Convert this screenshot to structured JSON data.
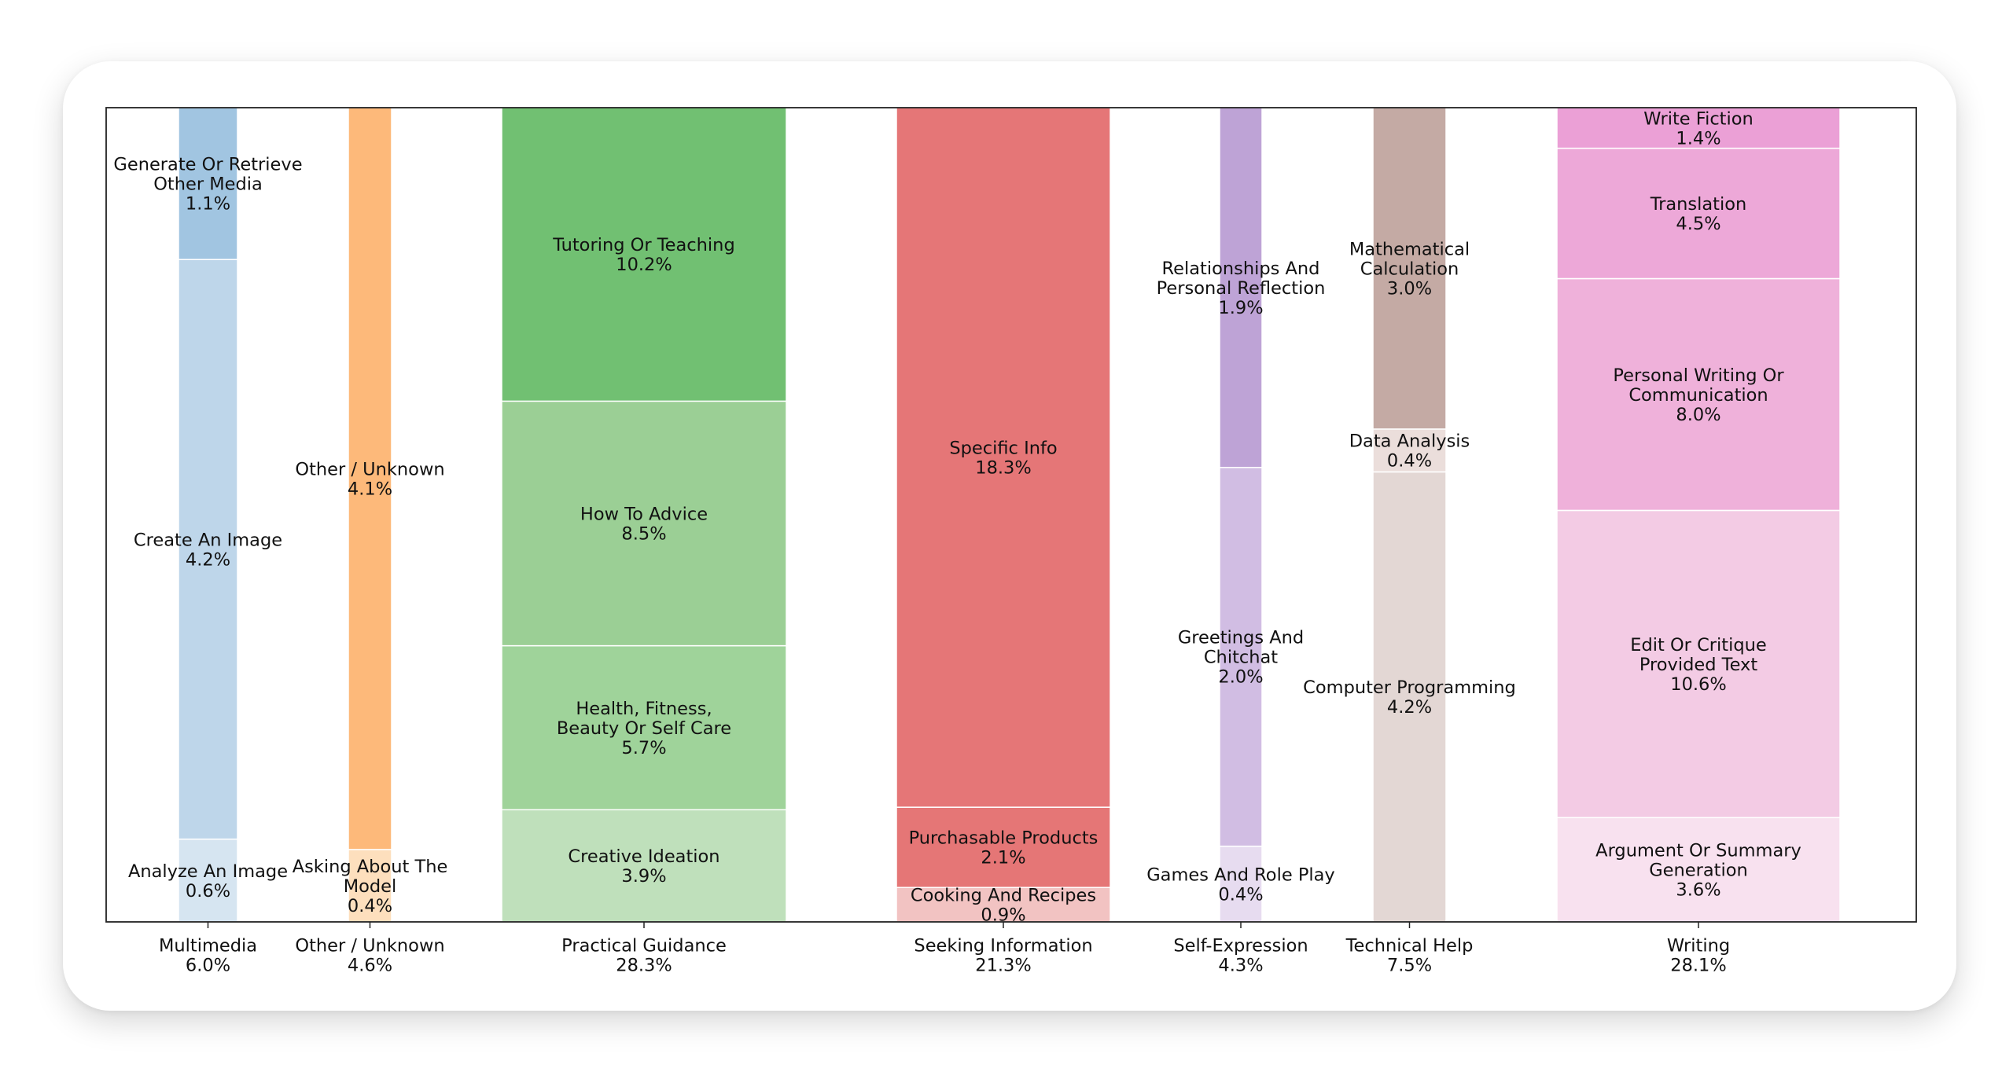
{
  "chart_data": {
    "type": "bar",
    "subtype": "mosaic (stacked, variable-width columns)",
    "ylim": [
      0,
      1
    ],
    "grid": false,
    "legend": "none",
    "categories": [
      {
        "name": "Multimedia",
        "total_label": "6.0%",
        "total": 6.0,
        "segments": [
          {
            "lines": [
              "Analyze An Image"
            ],
            "label": "0.6%",
            "value": 0.6,
            "color": "#d6e5f1"
          },
          {
            "lines": [
              "Create An Image"
            ],
            "label": "4.2%",
            "value": 4.2,
            "color": "#bed6ea"
          },
          {
            "lines": [
              "Generate Or Retrieve",
              "Other Media"
            ],
            "label": "1.1%",
            "value": 1.1,
            "color": "#a1c5e1"
          }
        ]
      },
      {
        "name": "Other / Unknown",
        "total_label": "4.6%",
        "total": 4.6,
        "segments": [
          {
            "lines": [
              "Asking About The",
              "Model"
            ],
            "label": "0.4%",
            "value": 0.4,
            "color": "#fddfbd"
          },
          {
            "lines": [
              "Other / Unknown"
            ],
            "label": "4.1%",
            "value": 4.1,
            "color": "#fdb97a"
          }
        ]
      },
      {
        "name": "Practical Guidance",
        "total_label": "28.3%",
        "total": 28.3,
        "segments": [
          {
            "lines": [
              "Creative Ideation"
            ],
            "label": "3.9%",
            "value": 3.9,
            "color": "#bfe0bb"
          },
          {
            "lines": [
              "Health, Fitness,",
              "Beauty Or Self Care"
            ],
            "label": "5.7%",
            "value": 5.7,
            "color": "#9fd39a"
          },
          {
            "lines": [
              "How To Advice"
            ],
            "label": "8.5%",
            "value": 8.5,
            "color": "#9bcf95"
          },
          {
            "lines": [
              "Tutoring Or Teaching"
            ],
            "label": "10.2%",
            "value": 10.2,
            "color": "#71c072"
          }
        ]
      },
      {
        "name": "Seeking Information",
        "total_label": "21.3%",
        "total": 21.3,
        "segments": [
          {
            "lines": [
              "Cooking And Recipes"
            ],
            "label": "0.9%",
            "value": 0.9,
            "color": "#f2c3c2"
          },
          {
            "lines": [
              "Purchasable Products"
            ],
            "label": "2.1%",
            "value": 2.1,
            "color": "#e57676"
          },
          {
            "lines": [
              "Specific Info"
            ],
            "label": "18.3%",
            "value": 18.3,
            "color": "#e57677"
          }
        ]
      },
      {
        "name": "Self-Expression",
        "total_label": "4.3%",
        "total": 4.3,
        "segments": [
          {
            "lines": [
              "Games And Role Play"
            ],
            "label": "0.4%",
            "value": 0.4,
            "color": "#e7dcf0"
          },
          {
            "lines": [
              "Greetings And",
              "Chitchat"
            ],
            "label": "2.0%",
            "value": 2.0,
            "color": "#d1bde3"
          },
          {
            "lines": [
              "Relationships And",
              "Personal Reflection"
            ],
            "label": "1.9%",
            "value": 1.9,
            "color": "#bea3d6"
          }
        ]
      },
      {
        "name": "Technical Help",
        "total_label": "7.5%",
        "total": 7.5,
        "segments": [
          {
            "lines": [
              "Computer Programming"
            ],
            "label": "4.2%",
            "value": 4.2,
            "color": "#e3d7d4"
          },
          {
            "lines": [
              "Data Analysis"
            ],
            "label": "0.4%",
            "value": 0.4,
            "color": "#ebdedb"
          },
          {
            "lines": [
              "Mathematical",
              "Calculation"
            ],
            "label": "3.0%",
            "value": 3.0,
            "color": "#c4aaa4"
          }
        ]
      },
      {
        "name": "Writing",
        "total_label": "28.1%",
        "total": 28.1,
        "segments": [
          {
            "lines": [
              "Argument Or Summary",
              "Generation"
            ],
            "label": "3.6%",
            "value": 3.6,
            "color": "#f8e1ef"
          },
          {
            "lines": [
              "Edit Or Critique",
              "Provided Text"
            ],
            "label": "10.6%",
            "value": 10.6,
            "color": "#f3cbe4"
          },
          {
            "lines": [
              "Personal Writing Or",
              "Communication"
            ],
            "label": "8.0%",
            "value": 8.0,
            "color": "#efb1da"
          },
          {
            "lines": [
              "Translation"
            ],
            "label": "4.5%",
            "value": 4.5,
            "color": "#eda8d8"
          },
          {
            "lines": [
              "Write Fiction"
            ],
            "label": "1.4%",
            "value": 1.4,
            "color": "#eba0d6"
          }
        ]
      }
    ]
  }
}
